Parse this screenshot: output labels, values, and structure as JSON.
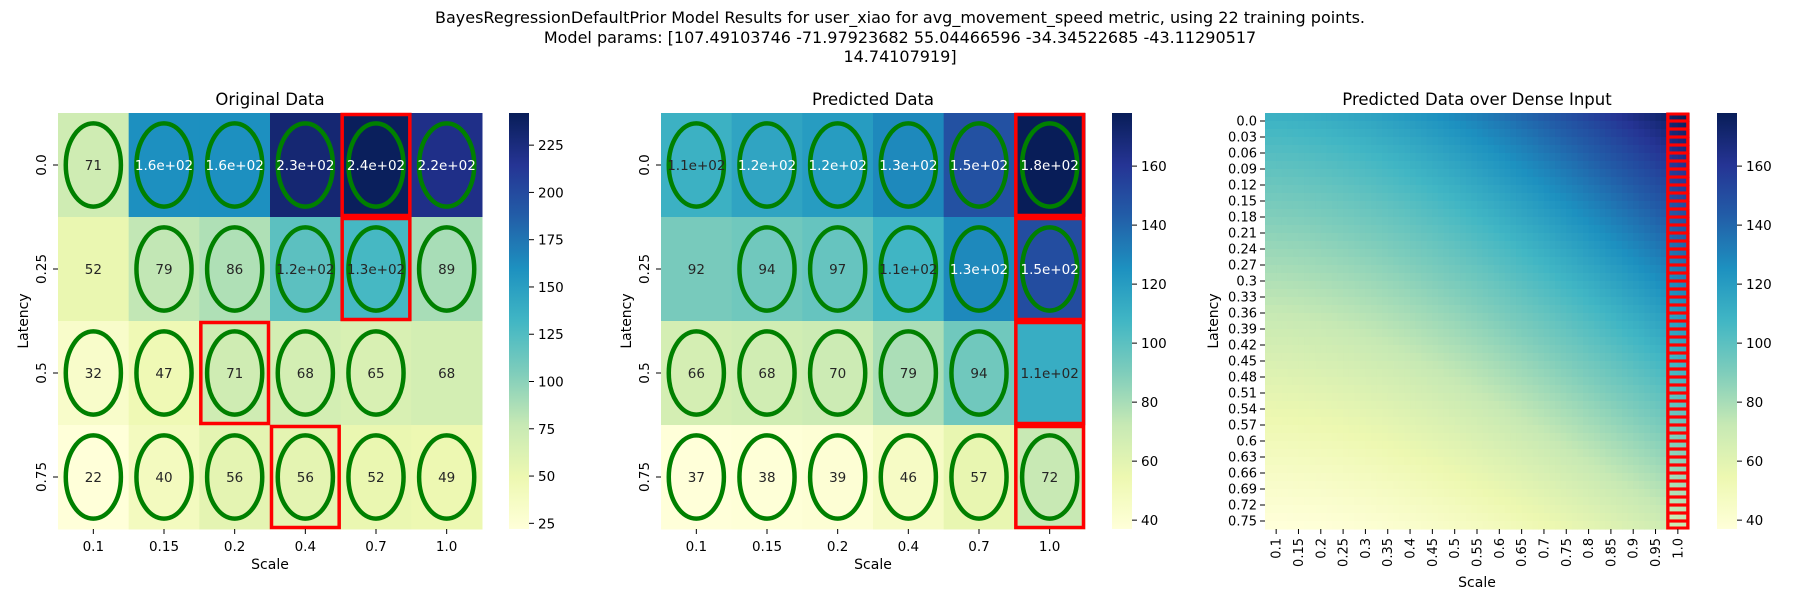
{
  "figure": {
    "title_lines": [
      "BayesRegressionDefaultPrior Model Results for user_xiao for avg_movement_speed metric, using 22 training points.",
      "Model params: [107.49103746 -71.97923682  55.04466596 -34.34522685 -43.11290517",
      "14.74107919]"
    ]
  },
  "chart_data": [
    {
      "type": "heatmap",
      "title": "Original Data",
      "xlabel": "Scale",
      "ylabel": "Latency",
      "x_ticks": [
        "0.1",
        "0.15",
        "0.2",
        "0.4",
        "0.7",
        "1.0"
      ],
      "y_ticks": [
        "0.0",
        "0.25",
        "0.5",
        "0.75"
      ],
      "cell_labels": [
        [
          "71",
          "1.6e+02",
          "1.6e+02",
          "2.3e+02",
          "2.4e+02",
          "2.2e+02"
        ],
        [
          "52",
          "79",
          "86",
          "1.2e+02",
          "1.3e+02",
          "89"
        ],
        [
          "32",
          "47",
          "71",
          "68",
          "65",
          "68"
        ],
        [
          "22",
          "40",
          "56",
          "56",
          "52",
          "49"
        ]
      ],
      "values": [
        [
          71,
          160,
          160,
          230,
          240,
          220
        ],
        [
          52,
          79,
          86,
          120,
          130,
          89
        ],
        [
          32,
          47,
          71,
          68,
          65,
          68
        ],
        [
          22,
          40,
          56,
          56,
          52,
          49
        ]
      ],
      "colorscale": "YlGnBu",
      "vmin": 22,
      "vmax": 242,
      "colorbar_ticks": [
        "25",
        "50",
        "75",
        "100",
        "125",
        "150",
        "175",
        "200",
        "225"
      ],
      "ellipses": [
        [
          1,
          1,
          1,
          1,
          1,
          1
        ],
        [
          0,
          1,
          1,
          1,
          1,
          1
        ],
        [
          1,
          1,
          1,
          1,
          1,
          0
        ],
        [
          1,
          1,
          1,
          1,
          1,
          1
        ]
      ],
      "boxes": [
        [
          0,
          4
        ],
        [
          1,
          4
        ],
        [
          2,
          2
        ],
        [
          3,
          3
        ]
      ],
      "ellipse_color": "#008000",
      "box_color": "#ff0000"
    },
    {
      "type": "heatmap",
      "title": "Predicted Data",
      "xlabel": "Scale",
      "ylabel": "Latency",
      "x_ticks": [
        "0.1",
        "0.15",
        "0.2",
        "0.4",
        "0.7",
        "1.0"
      ],
      "y_ticks": [
        "0.0",
        "0.25",
        "0.5",
        "0.75"
      ],
      "cell_labels": [
        [
          "1.1e+02",
          "1.2e+02",
          "1.2e+02",
          "1.3e+02",
          "1.5e+02",
          "1.8e+02"
        ],
        [
          "92",
          "94",
          "97",
          "1.1e+02",
          "1.3e+02",
          "1.5e+02"
        ],
        [
          "66",
          "68",
          "70",
          "79",
          "94",
          "1.1e+02"
        ],
        [
          "37",
          "38",
          "39",
          "46",
          "57",
          "72"
        ]
      ],
      "values": [
        [
          110,
          116,
          120,
          128,
          148,
          178
        ],
        [
          92,
          94,
          97,
          108,
          128,
          150
        ],
        [
          66,
          68,
          70,
          79,
          94,
          112
        ],
        [
          37,
          38,
          39,
          46,
          57,
          72
        ]
      ],
      "colorscale": "YlGnBu",
      "vmin": 37,
      "vmax": 178,
      "colorbar_ticks": [
        "40",
        "60",
        "80",
        "100",
        "120",
        "140",
        "160"
      ],
      "ellipses": [
        [
          1,
          1,
          1,
          1,
          1,
          1
        ],
        [
          0,
          1,
          1,
          1,
          1,
          1
        ],
        [
          1,
          1,
          1,
          1,
          1,
          0
        ],
        [
          1,
          1,
          1,
          1,
          1,
          1
        ]
      ],
      "boxes": [
        [
          0,
          5
        ],
        [
          1,
          5
        ],
        [
          2,
          5
        ],
        [
          3,
          5
        ]
      ],
      "ellipse_color": "#008000",
      "box_color": "#ff0000"
    },
    {
      "type": "heatmap",
      "title": "Predicted Data over Dense Input",
      "xlabel": "Scale",
      "ylabel": "Latency",
      "x_ticks": [
        "0.1",
        "0.15",
        "0.2",
        "0.25",
        "0.3",
        "0.35",
        "0.4",
        "0.45",
        "0.5",
        "0.55",
        "0.6",
        "0.65",
        "0.7",
        "0.75",
        "0.8",
        "0.85",
        "0.9",
        "0.95",
        "1.0"
      ],
      "y_ticks": [
        "0.0",
        "0.03",
        "0.06",
        "0.09",
        "0.12",
        "0.15",
        "0.18",
        "0.21",
        "0.24",
        "0.27",
        "0.3",
        "0.33",
        "0.36",
        "0.39",
        "0.42",
        "0.45",
        "0.48",
        "0.51",
        "0.54",
        "0.57",
        "0.6",
        "0.63",
        "0.66",
        "0.69",
        "0.72",
        "0.75"
      ],
      "corner_values": {
        "top_left": 110,
        "top_right": 178,
        "bottom_left": 37,
        "bottom_right": 72
      },
      "colorscale": "YlGnBu",
      "vmin": 37,
      "vmax": 178,
      "colorbar_ticks": [
        "40",
        "60",
        "80",
        "100",
        "120",
        "140",
        "160"
      ],
      "highlight_column": "1.0",
      "box_color": "#ff0000"
    }
  ]
}
